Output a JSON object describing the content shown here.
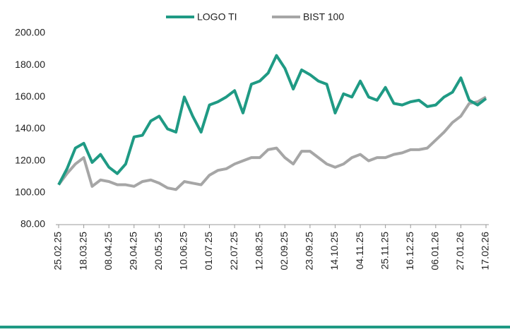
{
  "chart_data": {
    "type": "line",
    "x": [
      "25.02.25",
      "04.03.25",
      "11.03.25",
      "18.03.25",
      "25.03.25",
      "01.04.25",
      "08.04.25",
      "15.04.25",
      "22.04.25",
      "29.04.25",
      "06.05.25",
      "13.05.25",
      "20.05.25",
      "27.05.25",
      "03.06.25",
      "10.06.25",
      "17.06.25",
      "24.06.25",
      "01.07.25",
      "08.07.25",
      "15.07.25",
      "22.07.25",
      "29.07.25",
      "05.08.25",
      "12.08.25",
      "19.08.25",
      "26.08.25",
      "02.09.25",
      "09.09.25",
      "16.09.25",
      "23.09.25",
      "30.09.25",
      "07.10.25",
      "14.10.25",
      "21.10.25",
      "28.10.25",
      "04.11.25",
      "11.11.25",
      "18.11.25",
      "25.11.25",
      "02.12.25",
      "09.12.25",
      "16.12.25",
      "23.12.25",
      "30.12.25",
      "06.01.26",
      "13.01.26",
      "20.01.26",
      "27.01.26",
      "03.02.26",
      "10.02.26",
      "17.02.26"
    ],
    "series": [
      {
        "name": "LOGO TI",
        "color": "#1f9a84",
        "values": [
          105,
          115,
          128,
          131,
          119,
          124,
          116,
          112,
          118,
          135,
          136,
          145,
          148,
          140,
          138,
          160,
          148,
          138,
          155,
          157,
          160,
          164,
          150,
          168,
          170,
          175,
          186,
          178,
          165,
          177,
          174,
          170,
          168,
          150,
          162,
          160,
          170,
          160,
          158,
          166,
          156,
          155,
          157,
          158,
          154,
          155,
          160,
          163,
          172,
          158,
          155,
          159
        ]
      },
      {
        "name": "BIST 100",
        "color": "#a6a6a6",
        "values": [
          105,
          112,
          118,
          122,
          104,
          108,
          107,
          105,
          105,
          104,
          107,
          108,
          106,
          103,
          102,
          107,
          106,
          105,
          111,
          114,
          115,
          118,
          120,
          122,
          122,
          127,
          128,
          122,
          118,
          126,
          126,
          122,
          118,
          116,
          118,
          122,
          124,
          120,
          122,
          122,
          124,
          125,
          127,
          127,
          128,
          133,
          138,
          144,
          148,
          156,
          157,
          160
        ]
      }
    ],
    "xticks": [
      "25.02.25",
      "18.03.25",
      "08.04.25",
      "29.04.25",
      "20.05.25",
      "10.06.25",
      "01.07.25",
      "22.07.25",
      "12.08.25",
      "02.09.25",
      "23.09.25",
      "14.10.25",
      "04.11.25",
      "25.11.25",
      "16.12.25",
      "06.01.26",
      "27.01.26",
      "17.02.26"
    ],
    "ylim": [
      80,
      200
    ],
    "yticks": [
      {
        "value": 80,
        "label": "80.00"
      },
      {
        "value": 100,
        "label": "100.00"
      },
      {
        "value": 120,
        "label": "120.00"
      },
      {
        "value": 140,
        "label": "140.00"
      },
      {
        "value": 160,
        "label": "160.00"
      },
      {
        "value": 180,
        "label": "180.00"
      },
      {
        "value": 200,
        "label": "200.00"
      }
    ],
    "legend": "top"
  }
}
